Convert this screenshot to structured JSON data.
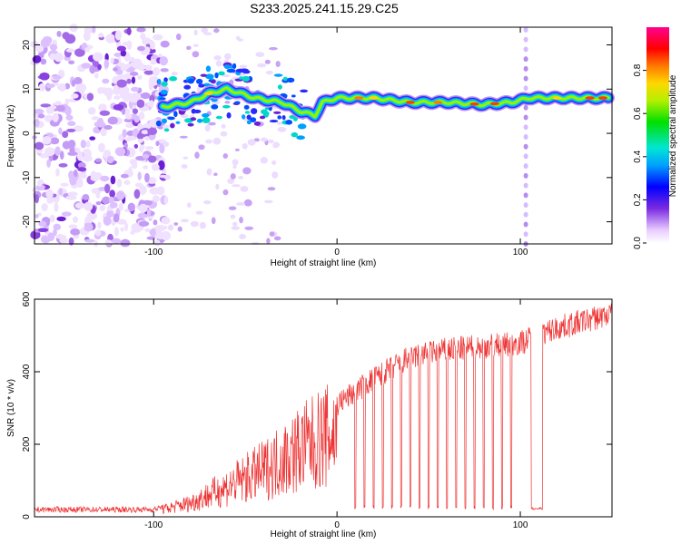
{
  "title": "S233.2025.241.15.29.C25",
  "chart_data": [
    {
      "type": "heatmap",
      "name": "spectrogram",
      "xlabel": "Height of straight line (km)",
      "ylabel": "Frequency (Hz)",
      "xlim": [
        -165,
        150
      ],
      "ylim": [
        -25,
        24
      ],
      "xticks": [
        -100,
        0,
        100
      ],
      "yticks": [
        -20,
        -10,
        0,
        10,
        20
      ],
      "colorbar": {
        "label": "Normalized spectral amplitude",
        "range": [
          0,
          1
        ],
        "ticks": [
          0.0,
          0.2,
          0.4,
          0.6,
          0.8
        ]
      },
      "ridge": [
        {
          "x": -95,
          "f": 6
        },
        {
          "x": -80,
          "f": 7
        },
        {
          "x": -70,
          "f": 9
        },
        {
          "x": -60,
          "f": 10
        },
        {
          "x": -45,
          "f": 8
        },
        {
          "x": -30,
          "f": 7
        },
        {
          "x": -20,
          "f": 5
        },
        {
          "x": -12,
          "f": 4
        },
        {
          "x": -8,
          "f": 7
        },
        {
          "x": 0,
          "f": 8
        },
        {
          "x": 20,
          "f": 8
        },
        {
          "x": 40,
          "f": 7
        },
        {
          "x": 60,
          "f": 7
        },
        {
          "x": 80,
          "f": 6.5
        },
        {
          "x": 95,
          "f": 7
        },
        {
          "x": 105,
          "f": 8
        },
        {
          "x": 130,
          "f": 8
        },
        {
          "x": 148,
          "f": 8
        }
      ]
    },
    {
      "type": "line",
      "name": "snr",
      "xlabel": "Height of straight line (km)",
      "ylabel": "SNR (10 * v/v)",
      "xlim": [
        -165,
        150
      ],
      "ylim": [
        0,
        600
      ],
      "xticks": [
        -100,
        0,
        100
      ],
      "yticks": [
        0,
        200,
        400,
        600
      ],
      "color": "#ee3333",
      "trend": [
        {
          "x": -165,
          "y": 20
        },
        {
          "x": -100,
          "y": 20
        },
        {
          "x": -80,
          "y": 50
        },
        {
          "x": -60,
          "y": 110
        },
        {
          "x": -40,
          "y": 170
        },
        {
          "x": -20,
          "y": 250
        },
        {
          "x": 0,
          "y": 310
        },
        {
          "x": 20,
          "y": 380
        },
        {
          "x": 40,
          "y": 440
        },
        {
          "x": 60,
          "y": 460
        },
        {
          "x": 80,
          "y": 470
        },
        {
          "x": 100,
          "y": 480
        },
        {
          "x": 120,
          "y": 520
        },
        {
          "x": 150,
          "y": 560
        }
      ],
      "dropouts_x": [
        10,
        15,
        20,
        25,
        30,
        35,
        40,
        45,
        50,
        55,
        60,
        65,
        70,
        75,
        80,
        85,
        90,
        95
      ],
      "gap": {
        "x_start": 106,
        "x_end": 112,
        "y": 20
      }
    }
  ]
}
